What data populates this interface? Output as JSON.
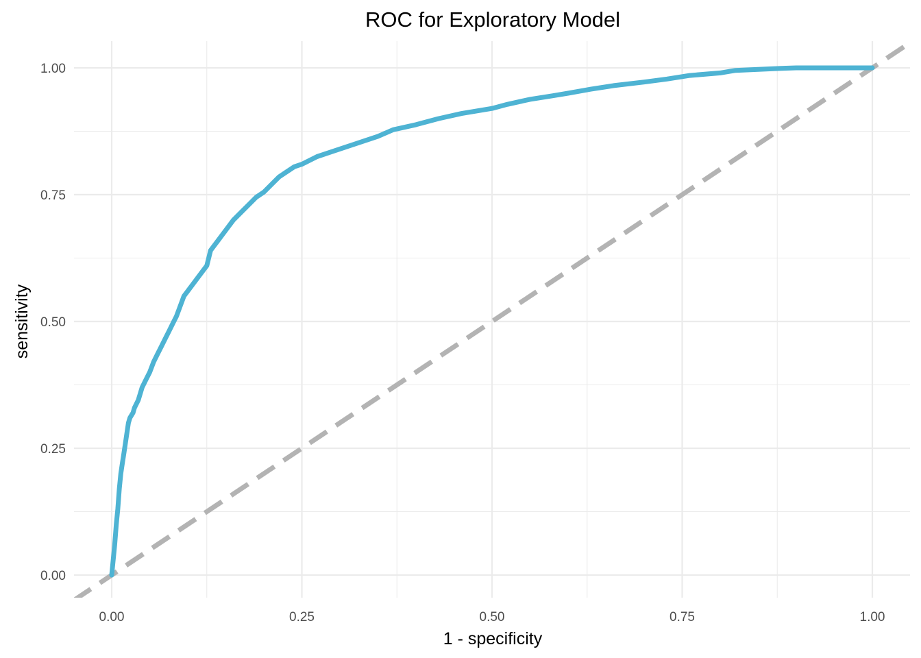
{
  "chart_data": {
    "type": "line",
    "title": "ROC for Exploratory Model",
    "xlabel": "1 - specificity",
    "ylabel": "sensitivity",
    "xlim": [
      0,
      1
    ],
    "ylim": [
      0,
      1
    ],
    "x_ticks": [
      "0.00",
      "0.25",
      "0.50",
      "0.75",
      "1.00"
    ],
    "y_ticks": [
      "0.00",
      "0.25",
      "0.50",
      "0.75",
      "1.00"
    ],
    "grid": true,
    "legend": "none",
    "colors": {
      "roc": "#4EB3D3",
      "diagonal": "#b3b3b3"
    },
    "series": [
      {
        "values_x": [
          0.0,
          0.002,
          0.004,
          0.006,
          0.008,
          0.01,
          0.012,
          0.014,
          0.016,
          0.018,
          0.02,
          0.022,
          0.024,
          0.026,
          0.028,
          0.03,
          0.035,
          0.04,
          0.045,
          0.05,
          0.055,
          0.06,
          0.065,
          0.07,
          0.075,
          0.08,
          0.085,
          0.09,
          0.095,
          0.1,
          0.11,
          0.12,
          0.125,
          0.13,
          0.14,
          0.15,
          0.16,
          0.17,
          0.18,
          0.19,
          0.2,
          0.21,
          0.22,
          0.23,
          0.24,
          0.25,
          0.27,
          0.29,
          0.31,
          0.33,
          0.35,
          0.37,
          0.4,
          0.43,
          0.46,
          0.5,
          0.52,
          0.55,
          0.58,
          0.6,
          0.63,
          0.66,
          0.7,
          0.73,
          0.76,
          0.8,
          0.82,
          0.85,
          0.88,
          0.9,
          0.95,
          1.0
        ],
        "values_y": [
          0.0,
          0.03,
          0.06,
          0.1,
          0.13,
          0.17,
          0.2,
          0.22,
          0.24,
          0.26,
          0.28,
          0.3,
          0.31,
          0.315,
          0.32,
          0.33,
          0.345,
          0.37,
          0.385,
          0.4,
          0.42,
          0.435,
          0.45,
          0.465,
          0.48,
          0.495,
          0.51,
          0.53,
          0.55,
          0.56,
          0.58,
          0.6,
          0.61,
          0.64,
          0.66,
          0.68,
          0.7,
          0.715,
          0.73,
          0.745,
          0.755,
          0.77,
          0.785,
          0.795,
          0.805,
          0.81,
          0.825,
          0.835,
          0.845,
          0.855,
          0.865,
          0.878,
          0.888,
          0.9,
          0.91,
          0.92,
          0.928,
          0.938,
          0.945,
          0.95,
          0.958,
          0.965,
          0.972,
          0.978,
          0.985,
          0.99,
          0.995,
          0.997,
          0.999,
          1.0,
          1.0,
          1.0
        ]
      },
      {
        "style": "dashed",
        "values_x": [
          -0.05,
          1.05
        ],
        "values_y": [
          -0.05,
          1.05
        ]
      }
    ]
  }
}
